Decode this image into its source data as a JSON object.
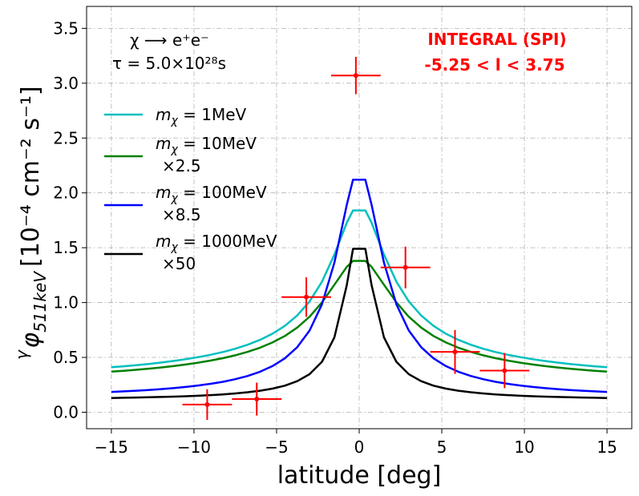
{
  "chart_data": {
    "type": "line",
    "xlabel": "latitude [deg]",
    "ylabel": "φ",
    "ylabel_sup": "γ",
    "ylabel_sub": "511keV",
    "ylabel_units": "[10⁻⁴ cm⁻² s⁻¹]",
    "xlim": [
      -16.5,
      16.5
    ],
    "ylim": [
      -0.15,
      3.7
    ],
    "xticks": [
      -15,
      -10,
      -5,
      0,
      5,
      10,
      15
    ],
    "xtick_labels": [
      "−15",
      "−10",
      "−5",
      "0",
      "5",
      "10",
      "15"
    ],
    "yticks": [
      0.0,
      0.5,
      1.0,
      1.5,
      2.0,
      2.5,
      3.0,
      3.5
    ],
    "ytick_labels": [
      "0.0",
      "0.5",
      "1.0",
      "1.5",
      "2.0",
      "2.5",
      "3.0",
      "3.5"
    ],
    "grid": true,
    "legend_position": "upper-left",
    "annotations": {
      "process": "χ ⟶ e⁺e⁻",
      "lifetime": "τ = 5.0×10²⁸s",
      "instrument": "INTEGRAL (SPI)",
      "longitude_range": "-5.25  <  l  <  3.75"
    },
    "series": [
      {
        "name": "1MeV",
        "label_prefix": "m",
        "label_sub": "χ",
        "label_value": " = 1MeV",
        "scale_label": "",
        "color": "#00bfbf",
        "peak": 1.84,
        "edge": 0.41,
        "r": 1.6,
        "p": 0.5
      },
      {
        "name": "10MeV",
        "label_prefix": "m",
        "label_sub": "χ",
        "label_value": " = 10MeV",
        "scale_label": "×2.5",
        "color": "#008000",
        "peak": 1.38,
        "edge": 0.37,
        "r": 2.0,
        "p": 0.5
      },
      {
        "name": "100MeV",
        "label_prefix": "m",
        "label_sub": "χ",
        "label_value": " = 100MeV",
        "scale_label": "×8.5",
        "color": "#0000ff",
        "peak": 2.12,
        "edge": 0.185,
        "r": 1.5,
        "p": 0.75
      },
      {
        "name": "1000MeV",
        "label_prefix": "m",
        "label_sub": "χ",
        "label_value": " = 1000MeV",
        "scale_label": "×50",
        "color": "#000000",
        "peak": 1.49,
        "edge": 0.13,
        "r": 0.9,
        "p": 0.75
      }
    ],
    "data_points": [
      {
        "x": -9.2,
        "y": 0.07,
        "xerr": 1.5,
        "yerr": 0.14
      },
      {
        "x": -6.2,
        "y": 0.12,
        "xerr": 1.5,
        "yerr": 0.15
      },
      {
        "x": -3.2,
        "y": 1.05,
        "xerr": 1.5,
        "yerr": 0.18
      },
      {
        "x": -0.2,
        "y": 3.07,
        "xerr": 1.5,
        "yerr": 0.17
      },
      {
        "x": 2.8,
        "y": 1.32,
        "xerr": 1.5,
        "yerr": 0.19
      },
      {
        "x": 5.8,
        "y": 0.55,
        "xerr": 1.5,
        "yerr": 0.2
      },
      {
        "x": 8.8,
        "y": 0.38,
        "xerr": 1.5,
        "yerr": 0.16
      }
    ],
    "data_point_color": "#ff0000"
  }
}
